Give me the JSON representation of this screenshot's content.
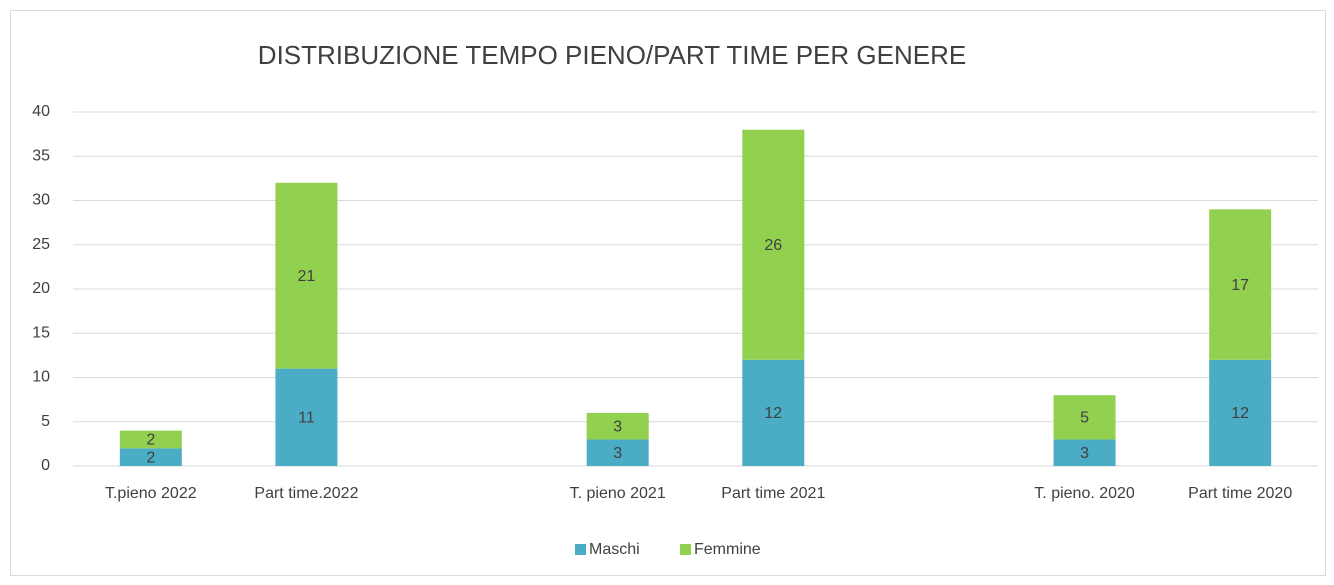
{
  "chart_data": {
    "type": "stacked_bar",
    "title": "DISTRIBUZIONE TEMPO PIENO/PART TIME PER GENERE",
    "categories": [
      "T.pieno 2022",
      "Part time.2022",
      null,
      "T. pieno 2021",
      "Part time 2021",
      null,
      "T. pieno. 2020",
      "Part time 2020"
    ],
    "series": [
      {
        "name": "Maschi",
        "color": "#4bacc6",
        "values": [
          2,
          11,
          null,
          3,
          12,
          null,
          3,
          12
        ]
      },
      {
        "name": "Femmine",
        "color": "#92d050",
        "values": [
          2,
          21,
          null,
          3,
          26,
          null,
          5,
          17
        ]
      }
    ],
    "ylim": [
      0,
      40
    ],
    "yticks": [
      0,
      5,
      10,
      15,
      20,
      25,
      30,
      35,
      40
    ],
    "grid": true,
    "legend": "bottom"
  }
}
